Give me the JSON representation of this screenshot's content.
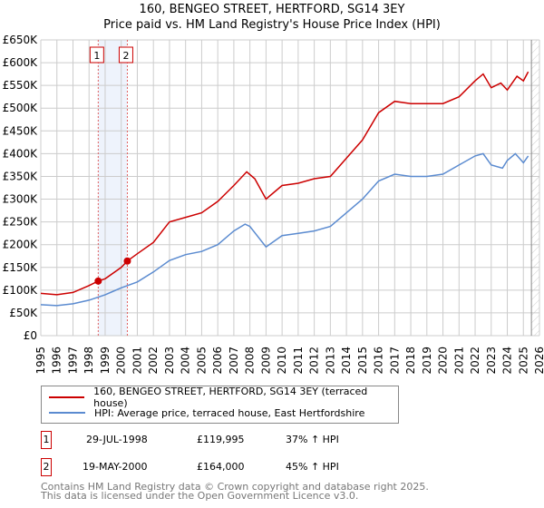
{
  "chart_data": {
    "type": "line",
    "title": "160, BENGEO STREET, HERTFORD, SG14 3EY",
    "subtitle": "Price paid vs. HM Land Registry's House Price Index (HPI)",
    "xlim": [
      1995,
      2026
    ],
    "ylim": [
      0,
      650000
    ],
    "x_ticks": [
      "1995",
      "1996",
      "1997",
      "1998",
      "1999",
      "2000",
      "2001",
      "2002",
      "2003",
      "2004",
      "2005",
      "2006",
      "2007",
      "2008",
      "2009",
      "2010",
      "2011",
      "2012",
      "2013",
      "2014",
      "2015",
      "2016",
      "2017",
      "2018",
      "2019",
      "2020",
      "2021",
      "2022",
      "2023",
      "2024",
      "2025",
      "2026"
    ],
    "y_ticks": [
      {
        "v": 0,
        "label": "£0"
      },
      {
        "v": 50000,
        "label": "£50K"
      },
      {
        "v": 100000,
        "label": "£100K"
      },
      {
        "v": 150000,
        "label": "£150K"
      },
      {
        "v": 200000,
        "label": "£200K"
      },
      {
        "v": 250000,
        "label": "£250K"
      },
      {
        "v": 300000,
        "label": "£300K"
      },
      {
        "v": 350000,
        "label": "£350K"
      },
      {
        "v": 400000,
        "label": "£400K"
      },
      {
        "v": 450000,
        "label": "£450K"
      },
      {
        "v": 500000,
        "label": "£500K"
      },
      {
        "v": 550000,
        "label": "£550K"
      },
      {
        "v": 600000,
        "label": "£600K"
      },
      {
        "v": 650000,
        "label": "£650K"
      }
    ],
    "grid": true,
    "series": [
      {
        "name": "160, BENGEO STREET, HERTFORD, SG14 3EY (terraced house)",
        "color": "#cc0000",
        "x": [
          1995,
          1996,
          1997,
          1998,
          1998.57,
          1999,
          2000,
          2000.38,
          2001,
          2002,
          2003,
          2004,
          2005,
          2006,
          2007,
          2007.8,
          2008.3,
          2009,
          2010,
          2011,
          2012,
          2013,
          2014,
          2015,
          2016,
          2017,
          2018,
          2019,
          2020,
          2021,
          2022,
          2022.5,
          2023,
          2023.6,
          2024,
          2024.6,
          2025,
          2025.3
        ],
        "y": [
          93000,
          90000,
          95000,
          110000,
          120000,
          125000,
          150000,
          164000,
          180000,
          205000,
          250000,
          260000,
          270000,
          295000,
          330000,
          360000,
          345000,
          300000,
          330000,
          335000,
          345000,
          350000,
          390000,
          430000,
          490000,
          515000,
          510000,
          510000,
          510000,
          525000,
          560000,
          575000,
          545000,
          555000,
          540000,
          570000,
          560000,
          580000
        ]
      },
      {
        "name": "HPI: Average price, terraced house, East Hertfordshire",
        "color": "#5b8bd0",
        "x": [
          1995,
          1996,
          1997,
          1998,
          1999,
          2000,
          2001,
          2002,
          2003,
          2004,
          2005,
          2006,
          2007,
          2007.7,
          2008,
          2009,
          2010,
          2011,
          2012,
          2013,
          2014,
          2015,
          2016,
          2017,
          2018,
          2019,
          2020,
          2021,
          2022,
          2022.5,
          2023,
          2023.7,
          2024,
          2024.5,
          2025,
          2025.3
        ],
        "y": [
          68000,
          66000,
          70000,
          78000,
          90000,
          105000,
          118000,
          140000,
          165000,
          178000,
          185000,
          200000,
          230000,
          245000,
          240000,
          195000,
          220000,
          225000,
          230000,
          240000,
          270000,
          300000,
          340000,
          355000,
          350000,
          350000,
          355000,
          375000,
          395000,
          400000,
          375000,
          368000,
          385000,
          400000,
          380000,
          395000
        ]
      }
    ],
    "sales": [
      {
        "n": "1",
        "x": 1998.57,
        "y": 119995
      },
      {
        "n": "2",
        "x": 2000.38,
        "y": 164000
      }
    ],
    "forecast_from": 2025.5,
    "legend": "below"
  },
  "table": [
    {
      "n": "1",
      "date": "29-JUL-1998",
      "price": "£119,995",
      "hpi": "37% ↑ HPI"
    },
    {
      "n": "2",
      "date": "19-MAY-2000",
      "price": "£164,000",
      "hpi": "45% ↑ HPI"
    }
  ],
  "footer": [
    "Contains HM Land Registry data © Crown copyright and database right 2025.",
    "This data is licensed under the Open Government Licence v3.0."
  ]
}
